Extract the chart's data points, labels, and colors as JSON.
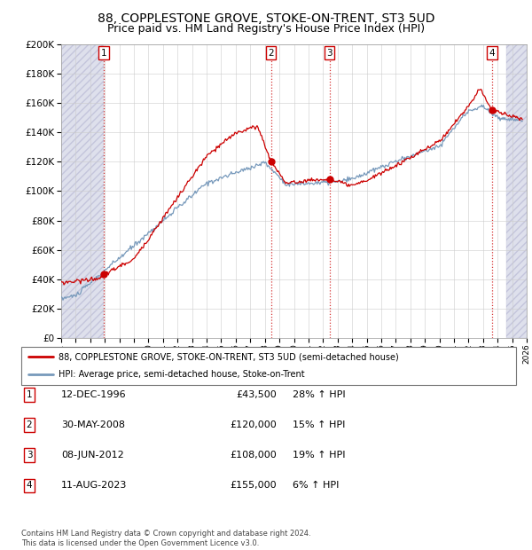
{
  "title": "88, COPPLESTONE GROVE, STOKE-ON-TRENT, ST3 5UD",
  "subtitle": "Price paid vs. HM Land Registry's House Price Index (HPI)",
  "ytick_values": [
    0,
    20000,
    40000,
    60000,
    80000,
    100000,
    120000,
    140000,
    160000,
    180000,
    200000
  ],
  "xmin": 1994.0,
  "xmax": 2026.0,
  "ymin": 0,
  "ymax": 200000,
  "hatch_left_end": 1996.92,
  "hatch_right_start": 2024.62,
  "sale_dates": [
    1996.95,
    2008.42,
    2012.44,
    2023.62
  ],
  "sale_prices": [
    43500,
    120000,
    108000,
    155000
  ],
  "sale_labels": [
    "1",
    "2",
    "3",
    "4"
  ],
  "sale_info": [
    {
      "num": "1",
      "date": "12-DEC-1996",
      "price": "£43,500",
      "hpi": "28% ↑ HPI"
    },
    {
      "num": "2",
      "date": "30-MAY-2008",
      "price": "£120,000",
      "hpi": "15% ↑ HPI"
    },
    {
      "num": "3",
      "date": "08-JUN-2012",
      "price": "£108,000",
      "hpi": "19% ↑ HPI"
    },
    {
      "num": "4",
      "date": "11-AUG-2023",
      "price": "£155,000",
      "hpi": "6% ↑ HPI"
    }
  ],
  "legend_line1": "88, COPPLESTONE GROVE, STOKE-ON-TRENT, ST3 5UD (semi-detached house)",
  "legend_line2": "HPI: Average price, semi-detached house, Stoke-on-Trent",
  "footer": "Contains HM Land Registry data © Crown copyright and database right 2024.\nThis data is licensed under the Open Government Licence v3.0.",
  "red_color": "#cc0000",
  "blue_color": "#7799bb",
  "hatch_color": "#c8cce0",
  "grid_color": "#cccccc",
  "title_fontsize": 10,
  "subtitle_fontsize": 9
}
